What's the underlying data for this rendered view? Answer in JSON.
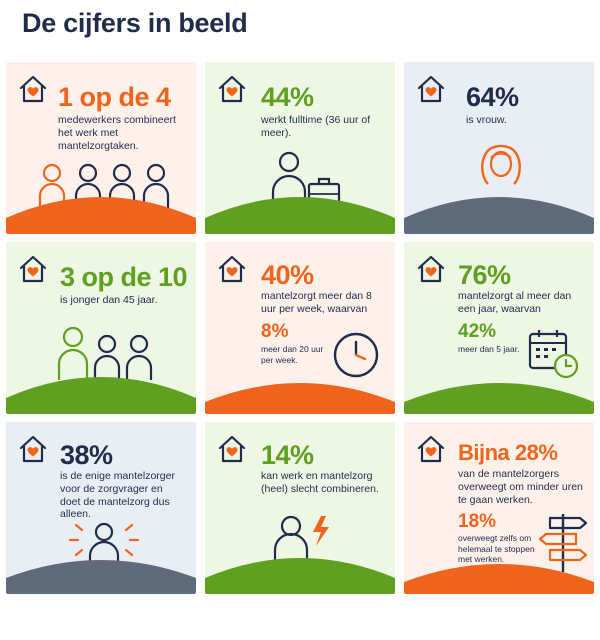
{
  "page": {
    "title": "De cijfers in beeld"
  },
  "colors": {
    "orange": "#f0641e",
    "green": "#5fa020",
    "navy": "#1f2d4a",
    "slate": "#5f6a7a"
  },
  "cards": [
    {
      "stat": "1 op de 4",
      "text": "medewerkers combineert het werk met mantelzorgtaken.",
      "icon": "people-group-icon"
    },
    {
      "stat": "44%",
      "text": "werkt fulltime (36 uur of meer).",
      "icon": "person-briefcase-icon"
    },
    {
      "stat": "64%",
      "text": "is vrouw.",
      "icon": "woman-icon"
    },
    {
      "stat": "3 op de 10",
      "text": "is jonger dan 45 jaar.",
      "icon": "people-trio-icon"
    },
    {
      "stat": "40%",
      "text": "mantelzorgt meer dan 8 uur per week, waarvan",
      "stat2": "8%",
      "text2": "meer dan 20 uur per week.",
      "icon": "clock-icon"
    },
    {
      "stat": "76%",
      "text": "mantelzorgt al meer dan een jaar, waarvan",
      "stat2": "42%",
      "text2": "meer dan 5 jaar.",
      "icon": "calendar-clock-icon"
    },
    {
      "stat": "38%",
      "text": "is de enige mantelzorger voor de zorgvrager en doet de mantelzorg dus alleen.",
      "icon": "alone-person-icon"
    },
    {
      "stat": "14%",
      "text": "kan werk en mantelzorg (heel) slecht combineren.",
      "icon": "person-lightning-icon"
    },
    {
      "stat_prefix": "Bijna",
      "stat": "28%",
      "text": "van de mantelzorgers overweegt om minder uren te gaan werken.",
      "stat2": "18%",
      "text2": "overweegt zelfs om helemaal te stoppen met werken.",
      "icon": "signpost-icon"
    }
  ]
}
